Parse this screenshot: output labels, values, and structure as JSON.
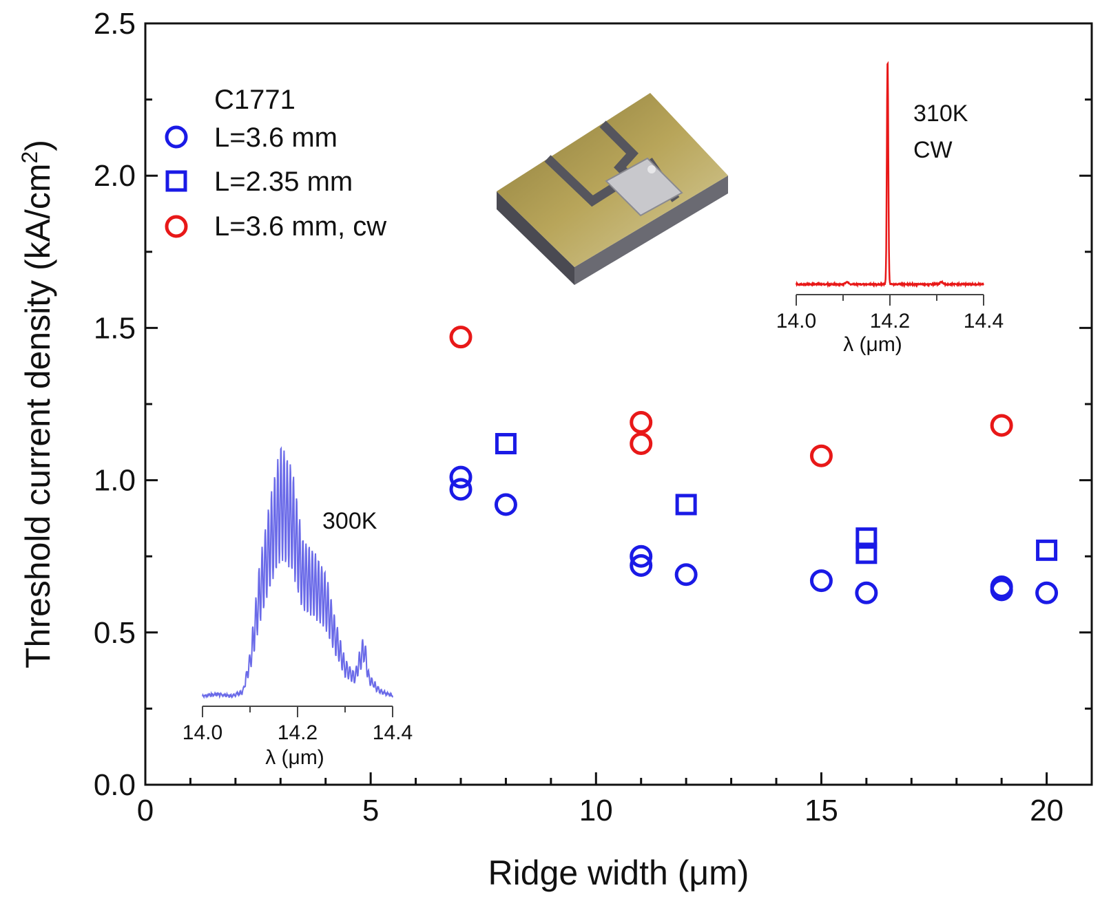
{
  "chart_data": [
    {
      "type": "scatter",
      "xlabel": "Ridge width (μm)",
      "ylabel": "Threshold current density (kA/cm",
      "ylabel_sup": "2",
      "ylabel_end": ")",
      "xlim": [
        0,
        21
      ],
      "ylim": [
        0,
        2.5
      ],
      "x_ticks": [
        0,
        5,
        10,
        15,
        20
      ],
      "x_tick_labels": [
        "0",
        "5",
        "10",
        "15",
        "20"
      ],
      "x_minor_step": 1,
      "y_ticks": [
        0,
        0.5,
        1.0,
        1.5,
        2.0,
        2.5
      ],
      "y_tick_labels": [
        "0.0",
        "0.5",
        "1.0",
        "1.5",
        "2.0",
        "2.5"
      ],
      "y_minor_step": 0.25,
      "legend": {
        "title": "C1771",
        "position": "top-left"
      },
      "series": [
        {
          "name": "L=3.6 mm",
          "marker": "circle",
          "color": "#1a1ae6",
          "points": [
            [
              7,
              1.01
            ],
            [
              7,
              0.97
            ],
            [
              8,
              0.92
            ],
            [
              11,
              0.75
            ],
            [
              11,
              0.72
            ],
            [
              12,
              0.69
            ],
            [
              15,
              0.67
            ],
            [
              16,
              0.63
            ],
            [
              19,
              0.65
            ],
            [
              19,
              0.64
            ],
            [
              20,
              0.63
            ]
          ]
        },
        {
          "name": "L=2.35 mm",
          "marker": "square",
          "color": "#1a1ae6",
          "points": [
            [
              8,
              1.12
            ],
            [
              12,
              0.92
            ],
            [
              16,
              0.81
            ],
            [
              16,
              0.76
            ],
            [
              20,
              0.77
            ]
          ]
        },
        {
          "name": "L=3.6 mm, cw",
          "marker": "circle",
          "color": "#e81818",
          "points": [
            [
              7,
              1.47
            ],
            [
              11,
              1.19
            ],
            [
              11,
              1.12
            ],
            [
              15,
              1.08
            ],
            [
              19,
              1.18
            ]
          ]
        }
      ]
    },
    {
      "type": "line",
      "label": "300K",
      "xlabel": "λ (μm)",
      "xlim": [
        14.0,
        14.4
      ],
      "x_ticks": [
        14.0,
        14.2,
        14.4
      ],
      "x_tick_labels": [
        "14.0",
        "14.2",
        "14.4"
      ],
      "color": "#6a6ae8",
      "envelope_x": [
        14.0,
        14.03,
        14.06,
        14.085,
        14.1,
        14.12,
        14.14,
        14.165,
        14.19,
        14.21,
        14.24,
        14.26,
        14.28,
        14.3,
        14.32,
        14.34,
        14.35,
        14.37,
        14.4
      ],
      "envelope_y": [
        0.01,
        0.02,
        0.01,
        0.03,
        0.18,
        0.52,
        0.75,
        0.98,
        0.88,
        0.62,
        0.55,
        0.48,
        0.3,
        0.15,
        0.1,
        0.25,
        0.1,
        0.04,
        0.01
      ]
    },
    {
      "type": "line",
      "label": "310K",
      "label2": "CW",
      "xlabel": "λ (μm)",
      "xlim": [
        14.0,
        14.4
      ],
      "x_ticks": [
        14.0,
        14.2,
        14.4
      ],
      "x_tick_labels": [
        "14.0",
        "14.2",
        "14.4"
      ],
      "color": "#e81818",
      "peak_x": 14.195,
      "peak_y": 1.0
    }
  ]
}
